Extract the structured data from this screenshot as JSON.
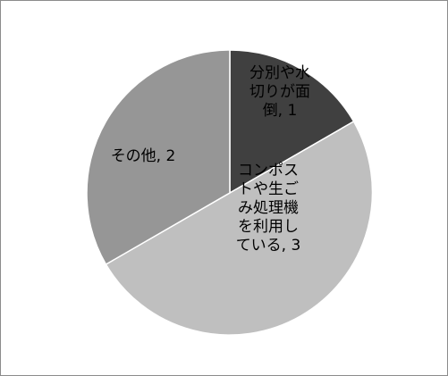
{
  "chart_data": {
    "type": "pie",
    "title": "",
    "start_angle_deg": 0,
    "direction": "clockwise",
    "slices": [
      {
        "category": "分別や水切りが面倒",
        "value": 1,
        "color": "#404040",
        "label_text_color": "#000000",
        "label_lines": [
          "分別や水",
          "切りが面",
          "倒, 1"
        ]
      },
      {
        "category": "コンポストや生ごみ処理機を利用している",
        "value": 3,
        "color": "#bfbfbf",
        "label_text_color": "#000000",
        "label_lines": [
          "コンポス",
          "トや生ご",
          "み処理機",
          "を利用し",
          "ている, 3"
        ]
      },
      {
        "category": "その他",
        "value": 2,
        "color": "#969696",
        "label_text_color": "#000000",
        "label_lines": [
          "その他, 2"
        ]
      }
    ]
  }
}
